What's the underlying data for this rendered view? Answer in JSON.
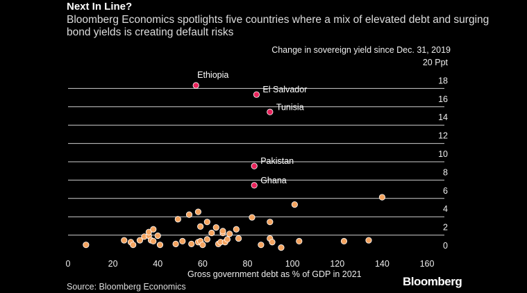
{
  "chart_data": {
    "type": "scatter",
    "title": "Next In Line?",
    "subtitle": "Bloomberg Economics spotlights five countries where a mix of elevated debt and surging bond yields is creating default risks",
    "ylabel": "Change in sovereign yield since Dec. 31, 2019",
    "xlabel": "Gross government debt as % of GDP in 2021",
    "xlim": [
      0,
      160
    ],
    "ylim": [
      0,
      20
    ],
    "xticks": [
      "0",
      "20",
      "40",
      "60",
      "80",
      "100",
      "120",
      "140",
      "160"
    ],
    "yticks": [
      "0",
      "2",
      "4",
      "6",
      "8",
      "10",
      "12",
      "14",
      "16",
      "18",
      "20 Ppt"
    ],
    "grid": "horizontal",
    "highlight_color": "#e8245c",
    "point_color": "#f4a460",
    "highlighted": [
      {
        "label": "Ethiopia",
        "x": 57,
        "y": 17.5
      },
      {
        "label": "El Salvador",
        "x": 84,
        "y": 16.5
      },
      {
        "label": "Tunisia",
        "x": 90,
        "y": 14.6
      },
      {
        "label": "Pakistan",
        "x": 83,
        "y": 8.7
      },
      {
        "label": "Ghana",
        "x": 83,
        "y": 6.6
      }
    ],
    "points": [
      {
        "x": 8,
        "y": 0.1
      },
      {
        "x": 25,
        "y": 0.6
      },
      {
        "x": 28,
        "y": 0.4
      },
      {
        "x": 29,
        "y": 0.1
      },
      {
        "x": 32,
        "y": 0.6
      },
      {
        "x": 34,
        "y": 1.0
      },
      {
        "x": 36,
        "y": 1.1
      },
      {
        "x": 36,
        "y": 1.5
      },
      {
        "x": 37,
        "y": 0.6
      },
      {
        "x": 38,
        "y": 1.8
      },
      {
        "x": 38,
        "y": 0.5
      },
      {
        "x": 40,
        "y": 1.1
      },
      {
        "x": 41,
        "y": 0.1
      },
      {
        "x": 48,
        "y": 0.2
      },
      {
        "x": 49,
        "y": 2.9
      },
      {
        "x": 51,
        "y": 0.5
      },
      {
        "x": 54,
        "y": 3.4
      },
      {
        "x": 55,
        "y": 0.2
      },
      {
        "x": 58,
        "y": 3.7
      },
      {
        "x": 58,
        "y": 0.4
      },
      {
        "x": 59,
        "y": 2.1
      },
      {
        "x": 59,
        "y": 0.5
      },
      {
        "x": 60,
        "y": 0.1
      },
      {
        "x": 62,
        "y": 2.6
      },
      {
        "x": 62,
        "y": 0.7
      },
      {
        "x": 64,
        "y": 1.4
      },
      {
        "x": 66,
        "y": 2.0
      },
      {
        "x": 67,
        "y": 0.2
      },
      {
        "x": 68,
        "y": 0.4
      },
      {
        "x": 69,
        "y": 1.4
      },
      {
        "x": 69,
        "y": 1.6
      },
      {
        "x": 70,
        "y": 0.4
      },
      {
        "x": 71,
        "y": 0.7
      },
      {
        "x": 72,
        "y": 1.3
      },
      {
        "x": 75,
        "y": 1.8
      },
      {
        "x": 76,
        "y": 0.8
      },
      {
        "x": 82,
        "y": 3.1
      },
      {
        "x": 86,
        "y": 0.1
      },
      {
        "x": 90,
        "y": 0.8
      },
      {
        "x": 90,
        "y": 2.6
      },
      {
        "x": 91,
        "y": 0.4
      },
      {
        "x": 95,
        "y": -0.2
      },
      {
        "x": 101,
        "y": 4.5
      },
      {
        "x": 103,
        "y": 0.5
      },
      {
        "x": 123,
        "y": 0.5
      },
      {
        "x": 134,
        "y": 0.6
      },
      {
        "x": 140,
        "y": 5.3
      }
    ]
  },
  "source": "Source: Bloomberg Economics",
  "logo_text": "Bloomberg"
}
